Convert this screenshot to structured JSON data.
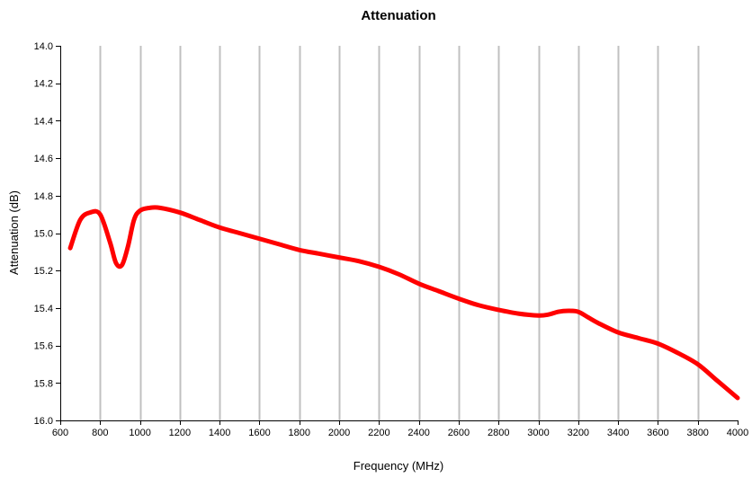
{
  "chart_data": {
    "type": "line",
    "title": "Attenuation",
    "xlabel": "Frequency (MHz)",
    "ylabel": "Attenuation (dB)",
    "xlim": [
      600,
      4000
    ],
    "ylim": [
      16.0,
      14.0
    ],
    "y_axis_inverted": true,
    "x_ticks": [
      600,
      800,
      1000,
      1200,
      1400,
      1600,
      1800,
      2000,
      2200,
      2400,
      2600,
      2800,
      3000,
      3200,
      3400,
      3600,
      3800,
      4000
    ],
    "y_ticks": [
      14.0,
      14.2,
      14.4,
      14.6,
      14.8,
      15.0,
      15.2,
      15.4,
      15.6,
      15.8,
      16.0
    ],
    "y_tick_labels": [
      "14.0",
      "14.2",
      "14.4",
      "14.6",
      "14.8",
      "15.0",
      "15.2",
      "15.4",
      "15.6",
      "15.8",
      "16.0"
    ],
    "grid": {
      "vertical": true,
      "horizontal": false
    },
    "colors": {
      "series": "#ff0000",
      "grid": "#c0c0c0",
      "axis": "#000000"
    },
    "series": [
      {
        "x": [
          650,
          700,
          750,
          800,
          850,
          880,
          910,
          940,
          970,
          1000,
          1050,
          1100,
          1200,
          1300,
          1400,
          1500,
          1600,
          1700,
          1800,
          1900,
          2000,
          2100,
          2200,
          2300,
          2400,
          2500,
          2600,
          2700,
          2800,
          2900,
          3000,
          3050,
          3100,
          3150,
          3200,
          3250,
          3300,
          3400,
          3500,
          3600,
          3700,
          3800,
          3900,
          4000
        ],
        "y": [
          15.08,
          14.93,
          14.89,
          14.9,
          15.05,
          15.16,
          15.17,
          15.07,
          14.93,
          14.88,
          14.865,
          14.865,
          14.89,
          14.93,
          14.97,
          15.0,
          15.03,
          15.06,
          15.09,
          15.11,
          15.13,
          15.15,
          15.18,
          15.22,
          15.27,
          15.31,
          15.35,
          15.385,
          15.41,
          15.43,
          15.44,
          15.435,
          15.42,
          15.415,
          15.42,
          15.45,
          15.48,
          15.53,
          15.56,
          15.59,
          15.64,
          15.7,
          15.79,
          15.88
        ]
      }
    ]
  }
}
